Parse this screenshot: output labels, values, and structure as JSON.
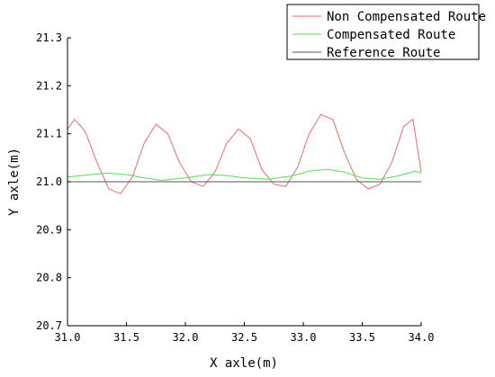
{
  "chart_data": {
    "type": "line",
    "title": "",
    "xlabel": "X axle(m)",
    "ylabel": "Y axle(m)",
    "xlim": [
      31.0,
      34.0
    ],
    "ylim": [
      20.7,
      21.3
    ],
    "x_ticks": [
      "31.0",
      "31.5",
      "32.0",
      "32.5",
      "33.0",
      "33.5",
      "34.0"
    ],
    "y_ticks": [
      "20.7",
      "20.8",
      "20.9",
      "21.0",
      "21.1",
      "21.2",
      "21.3"
    ],
    "grid": false,
    "legend_position": "top-right",
    "series": [
      {
        "name": "Non Compensated Route",
        "color": "#ee6a6a",
        "x": [
          31.0,
          31.06,
          31.15,
          31.25,
          31.35,
          31.45,
          31.55,
          31.65,
          31.75,
          31.85,
          31.95,
          32.05,
          32.15,
          32.25,
          32.35,
          32.45,
          32.55,
          32.65,
          32.75,
          32.85,
          32.95,
          33.05,
          33.15,
          33.25,
          33.35,
          33.45,
          33.55,
          33.65,
          33.75,
          33.85,
          33.93,
          34.0
        ],
        "y": [
          21.11,
          21.13,
          21.105,
          21.04,
          20.985,
          20.975,
          21.01,
          21.08,
          21.12,
          21.1,
          21.04,
          21.0,
          20.99,
          21.02,
          21.08,
          21.11,
          21.09,
          21.025,
          20.995,
          20.99,
          21.03,
          21.1,
          21.14,
          21.13,
          21.06,
          21.005,
          20.985,
          20.995,
          21.04,
          21.115,
          21.13,
          21.02
        ]
      },
      {
        "name": "Compensated Route",
        "color": "#4ee04e",
        "x": [
          31.0,
          31.2,
          31.35,
          31.5,
          31.65,
          31.8,
          32.0,
          32.2,
          32.35,
          32.5,
          32.7,
          32.9,
          33.05,
          33.2,
          33.35,
          33.5,
          33.65,
          33.8,
          33.95,
          34.0
        ],
        "y": [
          21.01,
          21.015,
          21.018,
          21.015,
          21.008,
          21.003,
          21.008,
          21.015,
          21.013,
          21.008,
          21.005,
          21.012,
          21.022,
          21.026,
          21.02,
          21.008,
          21.005,
          21.012,
          21.022,
          21.018
        ]
      },
      {
        "name": "Reference Route",
        "color": "#555555",
        "x": [
          31.0,
          34.0
        ],
        "y": [
          21.0,
          21.0
        ]
      }
    ]
  }
}
